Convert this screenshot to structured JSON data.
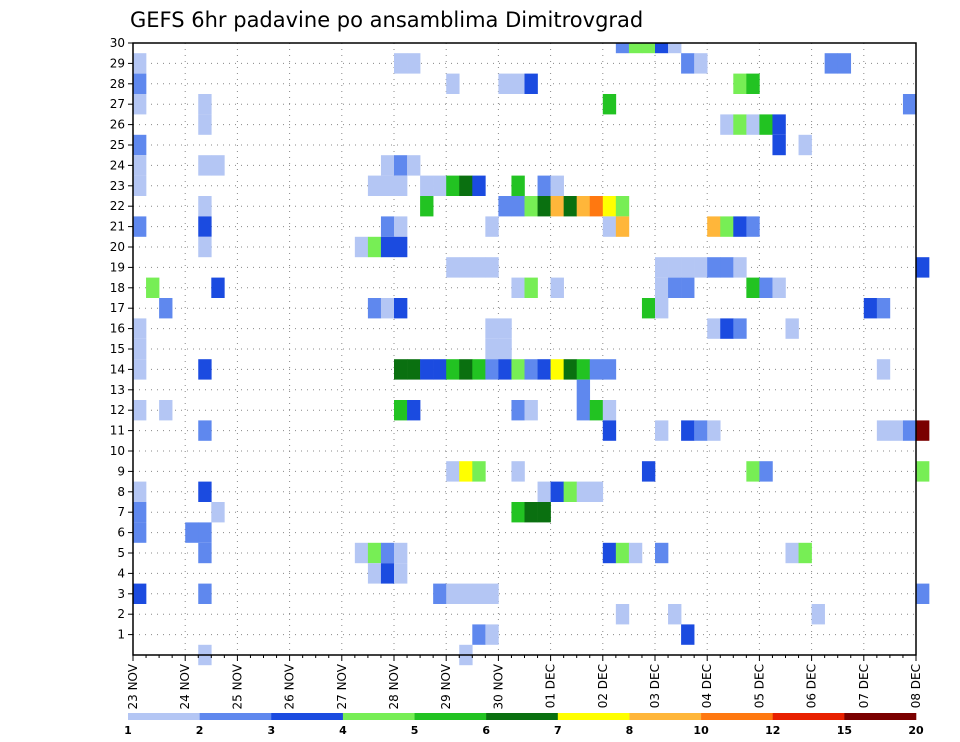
{
  "chart_data": {
    "type": "heatmap",
    "title": "GEFS 6hr padavine po ansamblima Dimitrovgrad",
    "y_ticks": [
      "1",
      "2",
      "3",
      "4",
      "5",
      "6",
      "7",
      "8",
      "9",
      "10",
      "11",
      "12",
      "13",
      "14",
      "15",
      "16",
      "17",
      "18",
      "19",
      "20",
      "21",
      "22",
      "23",
      "24",
      "25",
      "26",
      "27",
      "28",
      "29",
      "30"
    ],
    "x_ticks": [
      "23 NOV",
      "24 NOV",
      "25 NOV",
      "26 NOV",
      "27 NOV",
      "28 NOV",
      "29 NOV",
      "30 NOV",
      "01 DEC",
      "02 DEC",
      "03 DEC",
      "04 DEC",
      "05 DEC",
      "06 DEC",
      "07 DEC",
      "08 DEC"
    ],
    "x_range_days": [
      0,
      15
    ],
    "y_range": [
      0,
      30
    ],
    "steps_per_day": 4,
    "grid": true,
    "legend_placement": "bottom",
    "legend": {
      "colors": [
        "#b4c6f4",
        "#5f88ee",
        "#1b4be0",
        "#77ee55",
        "#22c322",
        "#0a7010",
        "#ffff00",
        "#ffb63a",
        "#ff7810",
        "#e82000",
        "#7a0000"
      ],
      "labels": [
        "1",
        "2",
        "3",
        "4",
        "5",
        "6",
        "7",
        "8",
        "10",
        "12",
        "15",
        "20"
      ]
    },
    "rows": [
      {
        "member": 30,
        "cells": [
          [
            37,
            2
          ],
          [
            38,
            4
          ],
          [
            39,
            4
          ],
          [
            40,
            3
          ],
          [
            41,
            1
          ]
        ]
      },
      {
        "member": 29,
        "cells": [
          [
            0,
            1
          ],
          [
            20,
            1
          ],
          [
            21,
            1
          ],
          [
            42,
            2
          ],
          [
            43,
            1
          ],
          [
            53,
            2
          ],
          [
            54,
            2
          ]
        ]
      },
      {
        "member": 28,
        "cells": [
          [
            0,
            2
          ],
          [
            24,
            1
          ],
          [
            28,
            1
          ],
          [
            29,
            1
          ],
          [
            30,
            3
          ],
          [
            46,
            4
          ],
          [
            47,
            5
          ]
        ]
      },
      {
        "member": 27,
        "cells": [
          [
            0,
            1
          ],
          [
            5,
            1
          ],
          [
            36,
            5
          ],
          [
            59,
            2
          ]
        ]
      },
      {
        "member": 26,
        "cells": [
          [
            5,
            1
          ],
          [
            45,
            1
          ],
          [
            46,
            4
          ],
          [
            47,
            1
          ],
          [
            48,
            5
          ],
          [
            49,
            3
          ]
        ]
      },
      {
        "member": 25,
        "cells": [
          [
            0,
            2
          ],
          [
            49,
            3
          ],
          [
            51,
            1
          ]
        ]
      },
      {
        "member": 24,
        "cells": [
          [
            0,
            1
          ],
          [
            5,
            1
          ],
          [
            6,
            1
          ],
          [
            19,
            1
          ],
          [
            20,
            2
          ],
          [
            21,
            1
          ]
        ]
      },
      {
        "member": 23,
        "cells": [
          [
            0,
            1
          ],
          [
            18,
            1
          ],
          [
            19,
            1
          ],
          [
            20,
            1
          ],
          [
            22,
            1
          ],
          [
            23,
            1
          ],
          [
            24,
            5
          ],
          [
            25,
            6
          ],
          [
            26,
            3
          ],
          [
            29,
            5
          ],
          [
            31,
            2
          ],
          [
            32,
            1
          ]
        ]
      },
      {
        "member": 22,
        "cells": [
          [
            5,
            1
          ],
          [
            22,
            5
          ],
          [
            28,
            2
          ],
          [
            29,
            2
          ],
          [
            30,
            4
          ],
          [
            31,
            6
          ],
          [
            32,
            8
          ],
          [
            33,
            6
          ],
          [
            34,
            8
          ],
          [
            35,
            9
          ],
          [
            36,
            7
          ],
          [
            37,
            4
          ]
        ]
      },
      {
        "member": 21,
        "cells": [
          [
            0,
            2
          ],
          [
            5,
            3
          ],
          [
            19,
            2
          ],
          [
            20,
            1
          ],
          [
            27,
            1
          ],
          [
            36,
            1
          ],
          [
            37,
            8
          ],
          [
            44,
            8
          ],
          [
            45,
            4
          ],
          [
            46,
            3
          ],
          [
            47,
            2
          ]
        ]
      },
      {
        "member": 20,
        "cells": [
          [
            5,
            1
          ],
          [
            17,
            1
          ],
          [
            18,
            4
          ],
          [
            19,
            3
          ],
          [
            20,
            3
          ]
        ]
      },
      {
        "member": 19,
        "cells": [
          [
            24,
            1
          ],
          [
            25,
            1
          ],
          [
            26,
            1
          ],
          [
            27,
            1
          ],
          [
            40,
            1
          ],
          [
            41,
            1
          ],
          [
            42,
            1
          ],
          [
            43,
            1
          ],
          [
            44,
            2
          ],
          [
            45,
            2
          ],
          [
            46,
            1
          ],
          [
            60,
            3
          ]
        ]
      },
      {
        "member": 18,
        "cells": [
          [
            1,
            4
          ],
          [
            6,
            3
          ],
          [
            29,
            1
          ],
          [
            30,
            4
          ],
          [
            32,
            1
          ],
          [
            40,
            1
          ],
          [
            41,
            2
          ],
          [
            42,
            2
          ],
          [
            47,
            5
          ],
          [
            48,
            2
          ],
          [
            49,
            1
          ]
        ]
      },
      {
        "member": 17,
        "cells": [
          [
            2,
            2
          ],
          [
            18,
            2
          ],
          [
            19,
            1
          ],
          [
            20,
            3
          ],
          [
            39,
            5
          ],
          [
            40,
            1
          ],
          [
            56,
            3
          ],
          [
            57,
            2
          ]
        ]
      },
      {
        "member": 16,
        "cells": [
          [
            0,
            1
          ],
          [
            27,
            1
          ],
          [
            28,
            1
          ],
          [
            44,
            1
          ],
          [
            45,
            3
          ],
          [
            46,
            2
          ],
          [
            50,
            1
          ]
        ]
      },
      {
        "member": 15,
        "cells": [
          [
            0,
            1
          ],
          [
            27,
            1
          ],
          [
            28,
            1
          ]
        ]
      },
      {
        "member": 14,
        "cells": [
          [
            0,
            1
          ],
          [
            5,
            3
          ],
          [
            20,
            6
          ],
          [
            21,
            6
          ],
          [
            22,
            3
          ],
          [
            23,
            3
          ],
          [
            24,
            5
          ],
          [
            25,
            6
          ],
          [
            26,
            5
          ],
          [
            27,
            2
          ],
          [
            28,
            3
          ],
          [
            29,
            4
          ],
          [
            30,
            2
          ],
          [
            31,
            3
          ],
          [
            32,
            7
          ],
          [
            33,
            6
          ],
          [
            34,
            5
          ],
          [
            35,
            2
          ],
          [
            36,
            2
          ],
          [
            57,
            1
          ]
        ]
      },
      {
        "member": 13,
        "cells": [
          [
            34,
            2
          ]
        ]
      },
      {
        "member": 12,
        "cells": [
          [
            0,
            1
          ],
          [
            2,
            1
          ],
          [
            20,
            5
          ],
          [
            21,
            3
          ],
          [
            29,
            2
          ],
          [
            30,
            1
          ],
          [
            34,
            2
          ],
          [
            35,
            5
          ],
          [
            36,
            1
          ]
        ]
      },
      {
        "member": 11,
        "cells": [
          [
            5,
            2
          ],
          [
            36,
            3
          ],
          [
            40,
            1
          ],
          [
            42,
            3
          ],
          [
            43,
            2
          ],
          [
            44,
            1
          ],
          [
            57,
            1
          ],
          [
            58,
            1
          ],
          [
            59,
            2
          ],
          [
            60,
            11
          ]
        ]
      },
      {
        "member": 9,
        "cells": [
          [
            24,
            1
          ],
          [
            25,
            7
          ],
          [
            26,
            4
          ],
          [
            29,
            1
          ],
          [
            39,
            3
          ],
          [
            47,
            4
          ],
          [
            48,
            2
          ],
          [
            60,
            4
          ]
        ]
      },
      {
        "member": 8,
        "cells": [
          [
            0,
            1
          ],
          [
            5,
            3
          ],
          [
            31,
            1
          ],
          [
            32,
            3
          ],
          [
            33,
            4
          ],
          [
            34,
            1
          ],
          [
            35,
            1
          ]
        ]
      },
      {
        "member": 7,
        "cells": [
          [
            0,
            2
          ],
          [
            6,
            1
          ],
          [
            29,
            5
          ],
          [
            30,
            6
          ],
          [
            31,
            6
          ]
        ]
      },
      {
        "member": 6,
        "cells": [
          [
            0,
            2
          ],
          [
            4,
            2
          ],
          [
            5,
            2
          ]
        ]
      },
      {
        "member": 5,
        "cells": [
          [
            5,
            2
          ],
          [
            17,
            1
          ],
          [
            18,
            4
          ],
          [
            19,
            2
          ],
          [
            20,
            1
          ],
          [
            36,
            3
          ],
          [
            37,
            4
          ],
          [
            38,
            1
          ],
          [
            40,
            2
          ],
          [
            50,
            1
          ],
          [
            51,
            4
          ]
        ]
      },
      {
        "member": 4,
        "cells": [
          [
            18,
            1
          ],
          [
            19,
            3
          ],
          [
            20,
            1
          ]
        ]
      },
      {
        "member": 3,
        "cells": [
          [
            0,
            3
          ],
          [
            5,
            2
          ],
          [
            23,
            2
          ],
          [
            24,
            1
          ],
          [
            25,
            1
          ],
          [
            26,
            1
          ],
          [
            27,
            1
          ],
          [
            60,
            2
          ]
        ]
      },
      {
        "member": 2,
        "cells": [
          [
            37,
            1
          ],
          [
            41,
            1
          ],
          [
            52,
            1
          ]
        ]
      },
      {
        "member": 1,
        "cells": [
          [
            26,
            2
          ],
          [
            27,
            1
          ],
          [
            42,
            3
          ]
        ]
      },
      {
        "member": 0,
        "cells": [
          [
            5,
            1
          ],
          [
            25,
            1
          ]
        ]
      }
    ]
  }
}
